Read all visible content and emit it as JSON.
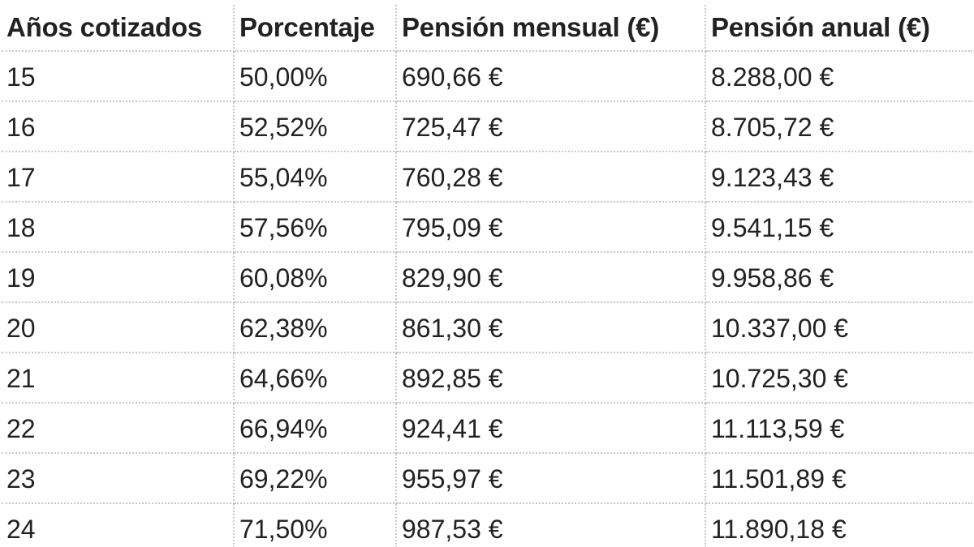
{
  "table": {
    "headers": [
      "Años cotizados",
      "Porcentaje",
      "Pensión mensual (€)",
      "Pensión anual (€)"
    ],
    "rows": [
      [
        "15",
        "50,00%",
        "690,66 €",
        "8.288,00 €"
      ],
      [
        "16",
        "52,52%",
        "725,47 €",
        "8.705,72 €"
      ],
      [
        "17",
        "55,04%",
        "760,28 €",
        "9.123,43 €"
      ],
      [
        "18",
        "57,56%",
        "795,09 €",
        "9.541,15 €"
      ],
      [
        "19",
        "60,08%",
        "829,90 €",
        "9.958,86 €"
      ],
      [
        "20",
        "62,38%",
        "861,30 €",
        "10.337,00 €"
      ],
      [
        "21",
        "64,66%",
        "892,85 €",
        "10.725,30 €"
      ],
      [
        "22",
        "66,94%",
        "924,41 €",
        "11.113,59 €"
      ],
      [
        "23",
        "69,22%",
        "955,97 €",
        "11.501,89 €"
      ],
      [
        "24",
        "71,50%",
        "987,53 €",
        "11.890,18 €"
      ]
    ]
  }
}
